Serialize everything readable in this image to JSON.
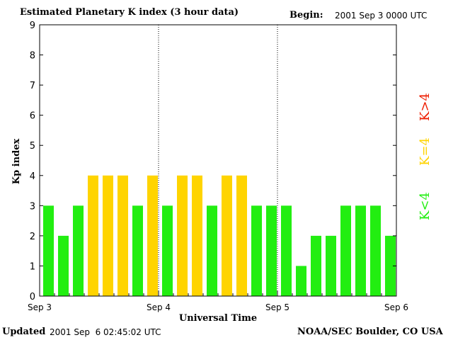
{
  "chart_data": {
    "type": "bar",
    "title": "Estimated Planetary K index (3 hour data)",
    "begin_label": "Begin:",
    "begin_value": "2001 Sep 3 0000 UTC",
    "ylabel": "Kp index",
    "xlabel": "Universal Time",
    "ylim": [
      0,
      9
    ],
    "yticks": [
      "0",
      "1",
      "2",
      "3",
      "4",
      "5",
      "6",
      "7",
      "8",
      "9"
    ],
    "x_tick_labels": [
      "Sep 3",
      "Sep 4",
      "Sep 5",
      "Sep 6"
    ],
    "day_dividers_after_bar": [
      8,
      16
    ],
    "values": [
      3,
      2,
      3,
      4,
      4,
      4,
      3,
      4,
      3,
      4,
      4,
      3,
      4,
      4,
      3,
      3,
      3,
      1,
      2,
      2,
      3,
      3,
      3,
      2
    ],
    "colors": {
      "low": "#22ee11",
      "mid": "#ffd400",
      "high": "#ee1c00"
    },
    "grid": false
  },
  "legend": {
    "low": "K<4",
    "mid": "K=4",
    "high": "K>4"
  },
  "footer": {
    "updated_label": "Updated",
    "updated_value": "2001 Sep  6 02:45:02 UTC",
    "source": "NOAA/SEC Boulder, CO USA"
  }
}
